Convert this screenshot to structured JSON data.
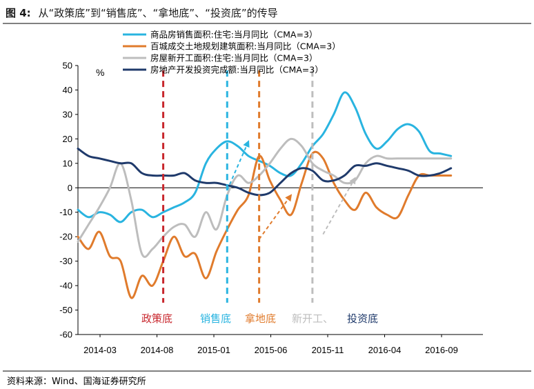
{
  "figure": {
    "title_prefix": "图 4:",
    "title_text": "从“政策底”到“销售底”、“拿地底”、“投资底”的传导",
    "source": "资料来源：Wind、国海证券研究所"
  },
  "chart_data": {
    "type": "line",
    "unit_label": "%",
    "ylim": [
      -60,
      50
    ],
    "yticks": [
      50,
      40,
      30,
      20,
      10,
      0,
      -10,
      -20,
      -30,
      -40,
      -50,
      -60
    ],
    "xlim": [
      "2014-01",
      "2017-03"
    ],
    "x_tick_labels": [
      "2014-03",
      "2014-08",
      "2015-01",
      "2015-06",
      "2015-11",
      "2016-04",
      "2016-09"
    ],
    "legend_position": "top-center",
    "colors": {
      "sales": "#29b4e0",
      "land": "#e07b2c",
      "newstart": "#bdbdbd",
      "invest": "#1f3a6b",
      "policy_line": "#c8272d"
    },
    "series": [
      {
        "key": "sales",
        "name": "商品房销售面积:住宅:当月同比（CMA=3）",
        "x": [
          "2014-01",
          "2014-02",
          "2014-03",
          "2014-04",
          "2014-05",
          "2014-06",
          "2014-07",
          "2014-08",
          "2014-09",
          "2014-10",
          "2014-11",
          "2014-12",
          "2015-01",
          "2015-02",
          "2015-03",
          "2015-04",
          "2015-05",
          "2015-06",
          "2015-07",
          "2015-08",
          "2015-09",
          "2015-10",
          "2015-11",
          "2015-12",
          "2016-01",
          "2016-02",
          "2016-03",
          "2016-04",
          "2016-05",
          "2016-06",
          "2016-07",
          "2016-08",
          "2016-09",
          "2016-10",
          "2016-11",
          "2016-12"
        ],
        "values": [
          -9,
          -12,
          -10,
          -11,
          -14,
          -10,
          -9,
          -12,
          -10,
          -8,
          -6,
          -2,
          10,
          16,
          19,
          17,
          13,
          11,
          9,
          6,
          5,
          10,
          17,
          22,
          30,
          39,
          33,
          22,
          16,
          19,
          24,
          26,
          23,
          15,
          14,
          13
        ]
      },
      {
        "key": "land",
        "name": "百城成交土地规划建筑面积:当月同比（CMA=3）",
        "x": [
          "2014-01",
          "2014-02",
          "2014-03",
          "2014-04",
          "2014-05",
          "2014-06",
          "2014-07",
          "2014-08",
          "2014-09",
          "2014-10",
          "2014-11",
          "2014-12",
          "2015-01",
          "2015-02",
          "2015-03",
          "2015-04",
          "2015-05",
          "2015-06",
          "2015-07",
          "2015-08",
          "2015-09",
          "2015-10",
          "2015-11",
          "2015-12",
          "2016-01",
          "2016-02",
          "2016-03",
          "2016-04",
          "2016-05",
          "2016-06",
          "2016-07",
          "2016-08",
          "2016-09",
          "2016-10",
          "2016-11",
          "2016-12"
        ],
        "values": [
          -20,
          -25,
          -18,
          -28,
          -30,
          -45,
          -36,
          -40,
          -30,
          -20,
          -28,
          -27,
          -37,
          -26,
          -17,
          -9,
          -3,
          13,
          3,
          -5,
          -11,
          2,
          14,
          12,
          2,
          -5,
          -9,
          -2,
          -8,
          -11,
          -12,
          -3,
          5,
          5,
          5,
          5
        ]
      },
      {
        "key": "newstart",
        "name": "房屋新开工面积:住宅:当月同比（CMA=3）",
        "x": [
          "2014-01",
          "2014-02",
          "2014-03",
          "2014-04",
          "2014-05",
          "2014-06",
          "2014-07",
          "2014-08",
          "2014-09",
          "2014-10",
          "2014-11",
          "2014-12",
          "2015-01",
          "2015-02",
          "2015-03",
          "2015-04",
          "2015-05",
          "2015-06",
          "2015-07",
          "2015-08",
          "2015-09",
          "2015-10",
          "2015-11",
          "2015-12",
          "2016-01",
          "2016-02",
          "2016-03",
          "2016-04",
          "2016-05",
          "2016-06",
          "2016-07",
          "2016-08",
          "2016-09",
          "2016-10",
          "2016-11",
          "2016-12"
        ],
        "values": [
          -22,
          -15,
          -8,
          0,
          10,
          -5,
          -27,
          -25,
          -20,
          -16,
          -15,
          -20,
          -10,
          -17,
          -3,
          5,
          2,
          5,
          10,
          16,
          20,
          17,
          10,
          7,
          5,
          2,
          3,
          10,
          13,
          12,
          12,
          12,
          12,
          12,
          12,
          12
        ]
      },
      {
        "key": "invest",
        "name": "房地产开发投资完成额:当月同比（CMA=3）",
        "x": [
          "2014-01",
          "2014-02",
          "2014-03",
          "2014-04",
          "2014-05",
          "2014-06",
          "2014-07",
          "2014-08",
          "2014-09",
          "2014-10",
          "2014-11",
          "2014-12",
          "2015-01",
          "2015-02",
          "2015-03",
          "2015-04",
          "2015-05",
          "2015-06",
          "2015-07",
          "2015-08",
          "2015-09",
          "2015-10",
          "2015-11",
          "2015-12",
          "2016-01",
          "2016-02",
          "2016-03",
          "2016-04",
          "2016-05",
          "2016-06",
          "2016-07",
          "2016-08",
          "2016-09",
          "2016-10",
          "2016-11",
          "2016-12"
        ],
        "values": [
          16,
          13,
          12,
          11,
          10,
          10,
          6,
          5,
          5,
          5,
          6,
          3,
          2,
          2,
          1,
          0,
          -2,
          -3,
          -2,
          2,
          6,
          8,
          7,
          3,
          3,
          5,
          9,
          9,
          10,
          9,
          8,
          7,
          5,
          5,
          6,
          8
        ]
      }
    ],
    "vlines": [
      {
        "key": "policy",
        "x": "2014-09",
        "color_key": "policy_line"
      },
      {
        "key": "sales",
        "x": "2015-03",
        "color_key": "sales"
      },
      {
        "key": "land",
        "x": "2015-06",
        "color_key": "land"
      },
      {
        "key": "newstart",
        "x": "2015-11",
        "color_key": "newstart"
      }
    ],
    "arrows": [
      {
        "key": "sales",
        "color_key": "sales",
        "from": [
          "2015-03",
          -1
        ],
        "to": [
          "2015-05",
          19
        ]
      },
      {
        "key": "land",
        "color_key": "land",
        "from": [
          "2015-06",
          -21
        ],
        "to": [
          "2015-09",
          -3
        ]
      },
      {
        "key": "newstart",
        "color_key": "newstart",
        "from": [
          "2015-12",
          -19
        ],
        "to": [
          "2016-03",
          4
        ]
      }
    ],
    "annotations": [
      {
        "key": "policy",
        "text": "政策底",
        "color_key": "policy_line"
      },
      {
        "key": "sales",
        "text": "销售底",
        "color_key": "sales"
      },
      {
        "key": "land",
        "text": "拿地底",
        "color_key": "land"
      },
      {
        "key": "newstart",
        "text": "新开工、",
        "color_key": "newstart"
      },
      {
        "key": "invest",
        "text": "投资底",
        "color_key": "invest"
      }
    ]
  }
}
